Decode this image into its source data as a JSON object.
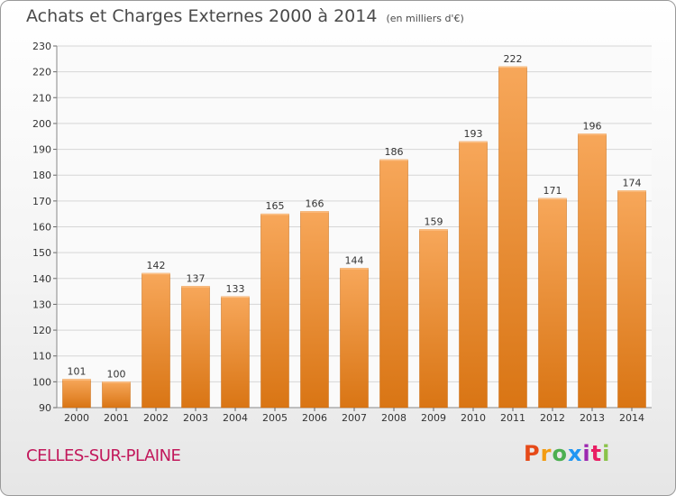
{
  "header": {
    "title": "Achats et Charges Externes 2000 à 2014",
    "unit": "(en milliers d'€)"
  },
  "footer": {
    "commune": "CELLES-SUR-PLAINE",
    "logo_text": "Proxiti",
    "logo_colors": [
      "#e64a19",
      "#f39c12",
      "#4caf50",
      "#2196f3",
      "#9c27b0",
      "#e91e63",
      "#8bc34a"
    ]
  },
  "colors": {
    "bar_top": "#f7a75a",
    "bar_bottom": "#d97514",
    "grid": "#d6d6d6",
    "axis_text": "#333333"
  },
  "chart_data": {
    "type": "bar",
    "categories": [
      "2000",
      "2001",
      "2002",
      "2003",
      "2004",
      "2005",
      "2006",
      "2007",
      "2008",
      "2009",
      "2010",
      "2011",
      "2012",
      "2013",
      "2014"
    ],
    "values": [
      101,
      100,
      142,
      137,
      133,
      165,
      166,
      144,
      186,
      159,
      193,
      222,
      171,
      196,
      174
    ],
    "title": "Achats et Charges Externes 2000 à 2014",
    "subtitle": "(en milliers d'€)",
    "ylim": [
      90,
      230
    ],
    "yticks": [
      90,
      100,
      110,
      120,
      130,
      140,
      150,
      160,
      170,
      180,
      190,
      200,
      210,
      220,
      230
    ],
    "grid": true,
    "data_labels": true
  }
}
